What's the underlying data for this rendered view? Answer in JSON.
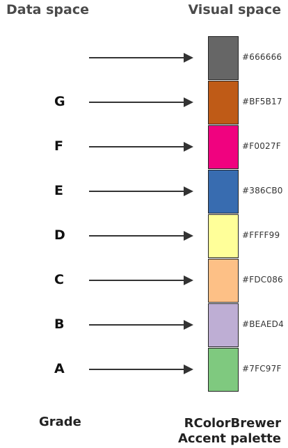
{
  "headers": {
    "data_space": "Data space",
    "visual_space": "Visual space"
  },
  "footers": {
    "grade": "Grade",
    "palette_line1": "RColorBrewer",
    "palette_line2": "Accent palette"
  },
  "rows": [
    {
      "grade": "",
      "hex": "#666666",
      "color": "#666666"
    },
    {
      "grade": "G",
      "hex": "#BF5B17",
      "color": "#BF5B17"
    },
    {
      "grade": "F",
      "hex": "#F0027F",
      "color": "#F0027F"
    },
    {
      "grade": "E",
      "hex": "#386CB0",
      "color": "#386CB0"
    },
    {
      "grade": "D",
      "hex": "#FFFF99",
      "color": "#FFFF99"
    },
    {
      "grade": "C",
      "hex": "#FDC086",
      "color": "#FDC086"
    },
    {
      "grade": "B",
      "hex": "#BEAED4",
      "color": "#BEAED4"
    },
    {
      "grade": "A",
      "hex": "#7FC97F",
      "color": "#7FC97F"
    }
  ]
}
